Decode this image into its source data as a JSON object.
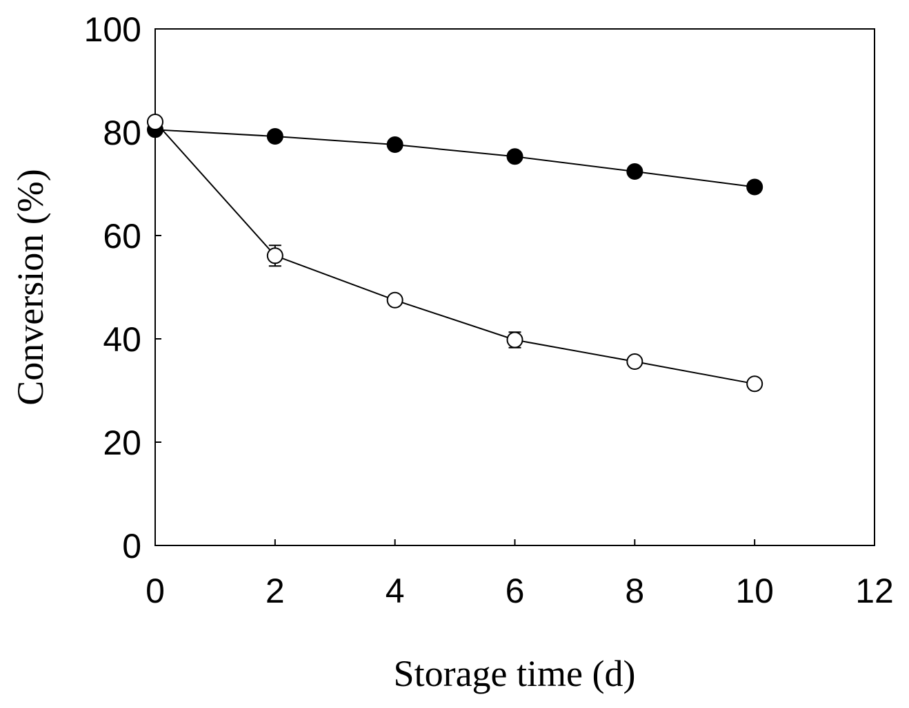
{
  "chart_data": {
    "type": "line",
    "title": "",
    "xlabel": "Storage time (d)",
    "ylabel": "Conversion (%)",
    "xlim": [
      0,
      12
    ],
    "ylim": [
      0,
      100
    ],
    "xticks": [
      0,
      2,
      4,
      6,
      8,
      10,
      12
    ],
    "yticks": [
      0,
      20,
      40,
      60,
      80,
      100
    ],
    "grid": false,
    "legend": "none",
    "series": [
      {
        "marker": "filled-circle",
        "color": "#000000",
        "x": [
          0,
          2,
          4,
          6,
          8,
          10
        ],
        "y": [
          80.5,
          79.2,
          77.6,
          75.3,
          72.4,
          69.4
        ],
        "err": [
          0.5,
          0.5,
          0.6,
          0.7,
          0.6,
          1.0
        ]
      },
      {
        "marker": "open-circle",
        "color": "#000000",
        "x": [
          0,
          2,
          4,
          6,
          8,
          10
        ],
        "y": [
          82.0,
          56.1,
          47.5,
          39.8,
          35.6,
          31.3
        ],
        "err": [
          0.5,
          2.0,
          0.8,
          1.5,
          0.8,
          0.6
        ]
      }
    ]
  }
}
